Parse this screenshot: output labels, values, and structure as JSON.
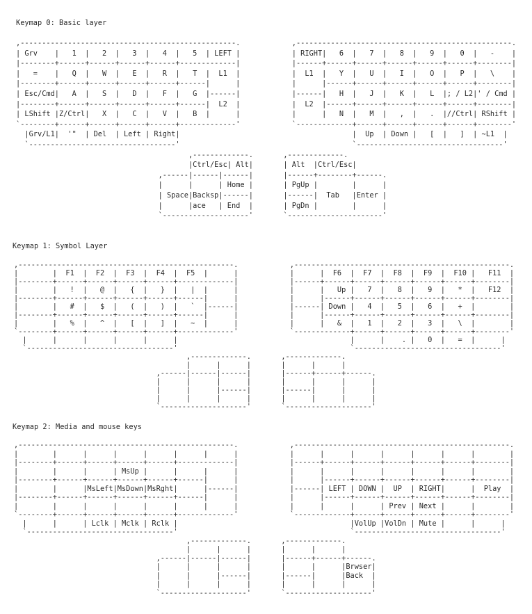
{
  "layers": [
    {
      "title": "Keymap 0: Basic layer",
      "lines": [
        {
          "l": ",--------------------------------------------------.",
          "r": "  ,--------------------------------------------------."
        },
        {
          "l": "| Grv    |   1  |   2  |   3  |   4  |   5  | LEFT |",
          "r": "  | RIGHT|   6  |   7  |   8  |   9  |   0  |   -    |"
        },
        {
          "l": "|--------+------+------+------+------+-------------|",
          "r": "  |------+------+------+------+------+------+--------|"
        },
        {
          "l": "|   =    |   Q  |   W  |   E  |   R  |   T  |  L1  |",
          "r": "  |  L1  |   Y  |   U  |   I  |   O  |   P  |   \\    |"
        },
        {
          "l": "|--------+------+------+------+------+------|      |",
          "r": "  |      |------+------+------+------+------+--------|"
        },
        {
          "l": "| Esc/Cmd|   A  |   S  |   D  |   F  |   G  |------|",
          "r": "  |------|   H  |   J  |   K  |   L  |; / L2|' / Cmd |"
        },
        {
          "l": "|--------+------+------+------+------+------|  L2  |",
          "r": "  |  L2  |------+------+------+------+------+--------|"
        },
        {
          "l": "| LShift |Z/Ctrl|   X  |   C  |   V  |   B  |      |",
          "r": "  |      |   N  |   M  |   ,  |   .  |//Ctrl| RShift |"
        },
        {
          "l": "`--------+------+------+------+------+-------------'",
          "r": "  `-------------+------+------+------+------+--------'"
        },
        {
          "l": "  |Grv/L1|  '\"  | Del  | Left | Right|",
          "r": "                |  Up  | Down |   [  |   ]  | ~L1  |"
        },
        {
          "l": "  `----------------------------------'",
          "r": "                `----------------------------------'"
        },
        {
          "l": "                                        ,-------------.",
          "r": ",-------------."
        },
        {
          "l": "                                        |Ctrl/Esc| Alt|",
          "r": "| Alt  |Ctrl/Esc|"
        },
        {
          "l": "                                 ,------|------|------|",
          "r": "|------+--------+------."
        },
        {
          "l": "                                 |      |      | Home |",
          "r": "| PgUp |        |      |"
        },
        {
          "l": "                                 | Space|Backsp|------|",
          "r": "|------|  Tab   |Enter |"
        },
        {
          "l": "                                 |      |ace   | End  |",
          "r": "| PgDn |        |      |"
        },
        {
          "l": "                                 `--------------------'",
          "r": "`----------------------'"
        }
      ]
    },
    {
      "title": "Keymap 1: Symbol Layer",
      "lines": [
        {
          "l": ",--------------------------------------------------.",
          "r": "  ,--------------------------------------------------."
        },
        {
          "l": "|        |  F1  |  F2  |  F3  |  F4  |  F5  |      |",
          "r": "  |      |  F6  |  F7  |  F8  |  F9  |  F10 |   F11  |"
        },
        {
          "l": "|--------+------+------+------+------+-------------|",
          "r": "  |------+------+------+------+------+------+--------|"
        },
        {
          "l": "|        |   !  |   @  |   {  |   }  |   |  |      |",
          "r": "  |      |   Up |   7  |   8  |   9  |   *  |   F12  |"
        },
        {
          "l": "|--------+------+------+------+------+------|      |",
          "r": "  |      |------+------+------+------+------+--------|"
        },
        {
          "l": "|        |   #  |   $  |   (  |   )  |   `  |------|",
          "r": "  |------| Down |   4  |   5  |   6  |   +  |        |"
        },
        {
          "l": "|--------+------+------+------+------+------|      |",
          "r": "  |      |------+------+------+------+------+--------|"
        },
        {
          "l": "|        |   %  |   ^  |   [  |   ]  |   ~  |      |",
          "r": "  |      |   &  |   1  |   2  |   3  |   \\  |        |"
        },
        {
          "l": "`--------+------+------+------+------+-------------'",
          "r": "  `-------------+------+------+------+------+--------'"
        },
        {
          "l": "  |      |      |      |      |      |",
          "r": "                |      |    . |   0  |   =  |      |"
        },
        {
          "l": "  `----------------------------------'",
          "r": "                `----------------------------------'"
        },
        {
          "l": "                                        ,-------------.",
          "r": ",-------------."
        },
        {
          "l": "                                        |      |      |",
          "r": "|      |      |"
        },
        {
          "l": "                                 ,------|------|------|",
          "r": "|------+------+------."
        },
        {
          "l": "                                 |      |      |      |",
          "r": "|      |      |      |"
        },
        {
          "l": "                                 |      |      |------|",
          "r": "|------|      |      |"
        },
        {
          "l": "                                 |      |      |      |",
          "r": "|      |      |      |"
        },
        {
          "l": "                                 `--------------------'",
          "r": "`--------------------'"
        }
      ]
    },
    {
      "title": "Keymap 2: Media and mouse keys",
      "lines": [
        {
          "l": ",--------------------------------------------------.",
          "r": "  ,--------------------------------------------------."
        },
        {
          "l": "|        |      |      |      |      |      |      |",
          "r": "  |      |      |      |      |      |      |        |"
        },
        {
          "l": "|--------+------+------+------+------+-------------|",
          "r": "  |------+------+------+------+------+------+--------|"
        },
        {
          "l": "|        |      |      | MsUp |      |      |      |",
          "r": "  |      |      |      |      |      |      |        |"
        },
        {
          "l": "|--------+------+------+------+------+------|      |",
          "r": "  |      |------+------+------+------+------+--------|"
        },
        {
          "l": "|        |      |MsLeft|MsDown|MsRght|      |------|",
          "r": "  |------| LEFT | DOWN |  UP  | RIGHT|      |  Play  |"
        },
        {
          "l": "|--------+------+------+------+------+------|      |",
          "r": "  |      |------+------+------+------+------+--------|"
        },
        {
          "l": "|        |      |      |      |      |      |      |",
          "r": "  |      |      |      | Prev | Next |      |        |"
        },
        {
          "l": "`--------+------+------+------+------+-------------'",
          "r": "  `-------------+------+------+------+------+--------'"
        },
        {
          "l": "  |      |      | Lclk | Mclk | Rclk |",
          "r": "                |VolUp |VolDn | Mute |      |      |"
        },
        {
          "l": "  `----------------------------------'",
          "r": "                `----------------------------------'"
        },
        {
          "l": "                                        ,-------------.",
          "r": ",-------------."
        },
        {
          "l": "                                        |      |      |",
          "r": "|      |      |"
        },
        {
          "l": "                                 ,------|------|------|",
          "r": "|------+------+------."
        },
        {
          "l": "                                 |      |      |      |",
          "r": "|      |      |Brwser|"
        },
        {
          "l": "                                 |      |      |------|",
          "r": "|------|      |Back  |"
        },
        {
          "l": "                                 |      |      |      |",
          "r": "|      |      |      |"
        },
        {
          "l": "                                 `--------------------'",
          "r": "`--------------------'"
        }
      ]
    }
  ]
}
